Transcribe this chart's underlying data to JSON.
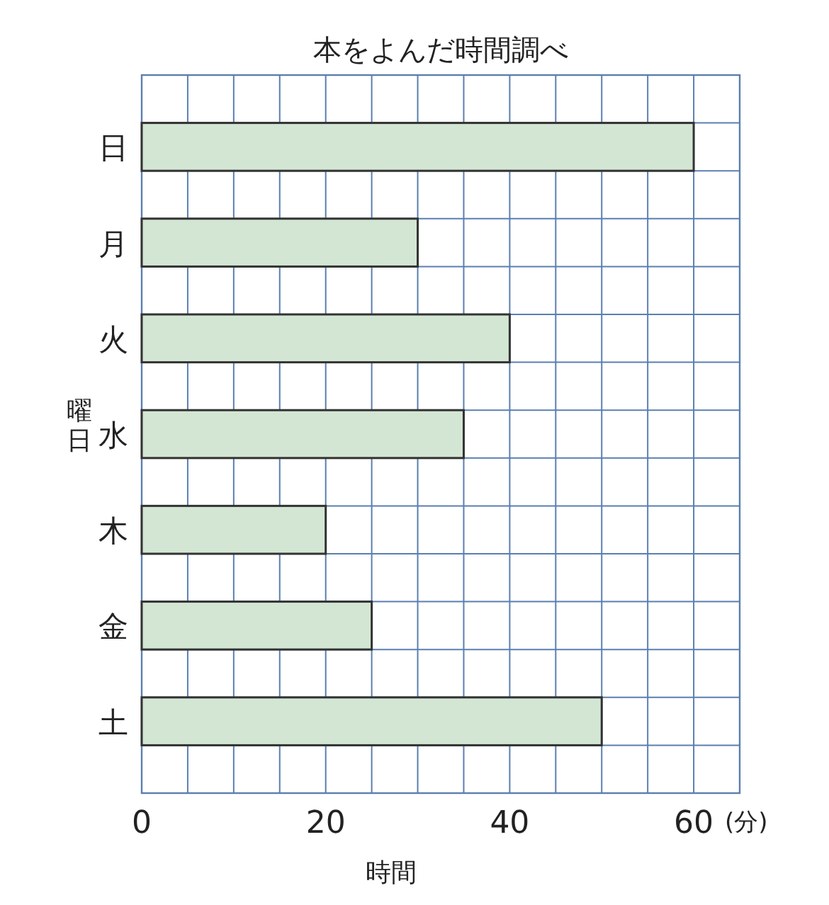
{
  "chart_data": {
    "type": "bar",
    "orientation": "horizontal",
    "title": "本をよんだ時間調べ",
    "xlabel": "時間",
    "ylabel": "曜日",
    "categories": [
      "日",
      "月",
      "火",
      "水",
      "木",
      "金",
      "土"
    ],
    "values": [
      60,
      30,
      40,
      35,
      20,
      25,
      50
    ],
    "color": "#d3e6d3",
    "xlim": [
      0,
      65
    ],
    "xticks": [
      0,
      {
        "value": 5,
        "label": null
      },
      {
        "value": 10,
        "label": null
      },
      {
        "value": 15,
        "label": null
      },
      20,
      {
        "value": 25,
        "label": null
      },
      {
        "value": 30,
        "label": null
      },
      {
        "value": 35,
        "label": null
      },
      40,
      {
        "value": 45,
        "label": null
      },
      {
        "value": 50,
        "label": null
      },
      {
        "value": 55,
        "label": null
      },
      60,
      {
        "value": 65,
        "label": null
      }
    ],
    "grid": true,
    "annotations": [
      "(分)"
    ]
  }
}
